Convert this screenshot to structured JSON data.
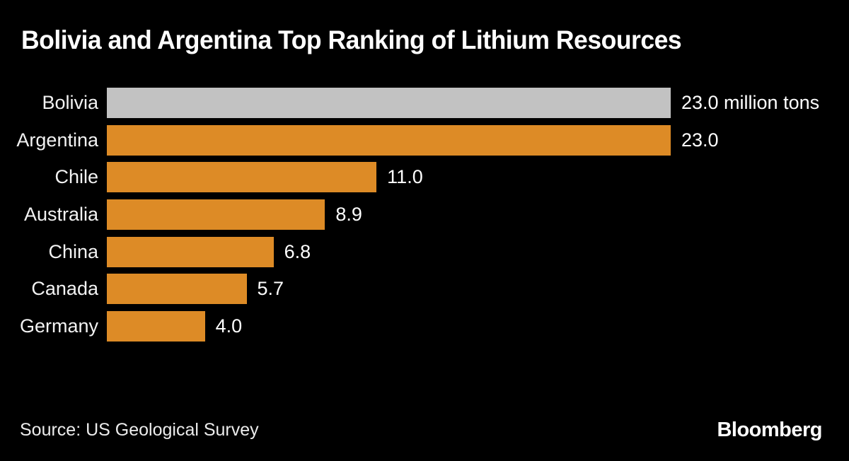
{
  "header": {
    "title": "Bolivia and Argentina Top Ranking of Lithium Resources"
  },
  "footer": {
    "source": "Source: US Geological Survey",
    "brand": "Bloomberg"
  },
  "colors": {
    "background": "#000000",
    "title_text": "#ffffff",
    "label_text": "#f2f2f2",
    "bar_default": "#dd8b26",
    "bar_highlight": "#c2c2c2"
  },
  "chart_data": {
    "type": "bar",
    "orientation": "horizontal",
    "title": "Bolivia and Argentina Top Ranking of Lithium Resources",
    "unit": "million tons",
    "categories": [
      "Bolivia",
      "Argentina",
      "Chile",
      "Australia",
      "China",
      "Canada",
      "Germany"
    ],
    "values": [
      23.0,
      23.0,
      11.0,
      8.9,
      6.8,
      5.7,
      4.0
    ],
    "value_labels": [
      "23.0 million tons",
      "23.0",
      "11.0",
      "8.9",
      "6.8",
      "5.7",
      "4.0"
    ],
    "xlim": [
      0,
      23.0
    ],
    "highlight_index": 0,
    "grid": false,
    "legend": false,
    "source": "US Geological Survey"
  }
}
